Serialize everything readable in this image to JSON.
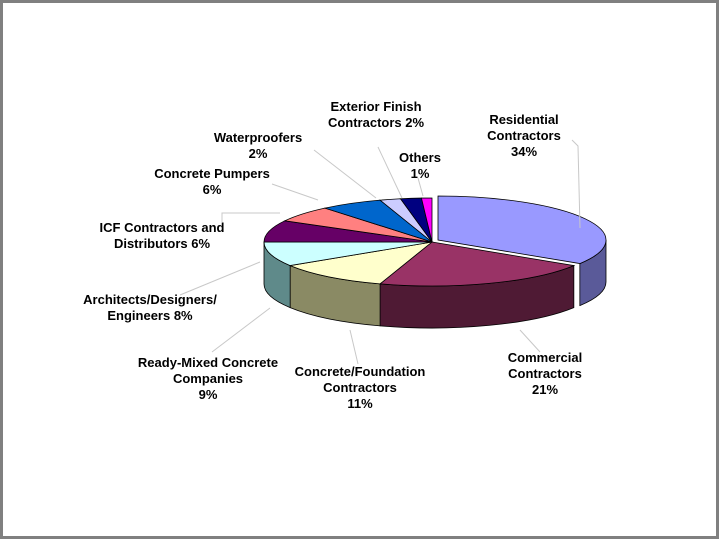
{
  "chart_data": {
    "type": "pie",
    "title": "",
    "legend": "none",
    "slices": [
      {
        "label_lines": [
          "Residential",
          "Contractors",
          "34%"
        ],
        "value": 34,
        "top_color": "#9999FF",
        "side_color": "#5A5A99"
      },
      {
        "label_lines": [
          "Commercial",
          "Contractors",
          "21%"
        ],
        "value": 21,
        "top_color": "#993366",
        "side_color": "#4F1A34"
      },
      {
        "label_lines": [
          "Concrete/Foundation",
          "Contractors",
          "11%"
        ],
        "value": 11,
        "top_color": "#FFFFCC",
        "side_color": "#8A8A64"
      },
      {
        "label_lines": [
          "Ready-Mixed Concrete",
          "Companies",
          "9%"
        ],
        "value": 9,
        "top_color": "#CCFFFF",
        "side_color": "#5F8A8A"
      },
      {
        "label_lines": [
          "Architects/Designers/",
          "Engineers  8%"
        ],
        "value": 8,
        "top_color": "#660066",
        "side_color": "#330033"
      },
      {
        "label_lines": [
          "ICF Contractors and",
          "Distributors  6%"
        ],
        "value": 6,
        "top_color": "#FF8080",
        "side_color": "#8A4040"
      },
      {
        "label_lines": [
          "Concrete Pumpers",
          "6%"
        ],
        "value": 6,
        "top_color": "#0066CC",
        "side_color": "#003366"
      },
      {
        "label_lines": [
          "Waterproofers",
          "2%"
        ],
        "value": 2,
        "top_color": "#CCCCFF",
        "side_color": "#6A6A8A"
      },
      {
        "label_lines": [
          "Exterior Finish",
          "Contractors 2%"
        ],
        "value": 2,
        "top_color": "#000080",
        "side_color": "#000040"
      },
      {
        "label_lines": [
          "Others",
          "1%"
        ],
        "value": 1,
        "top_color": "#FF00FF",
        "side_color": "#800080"
      }
    ]
  }
}
